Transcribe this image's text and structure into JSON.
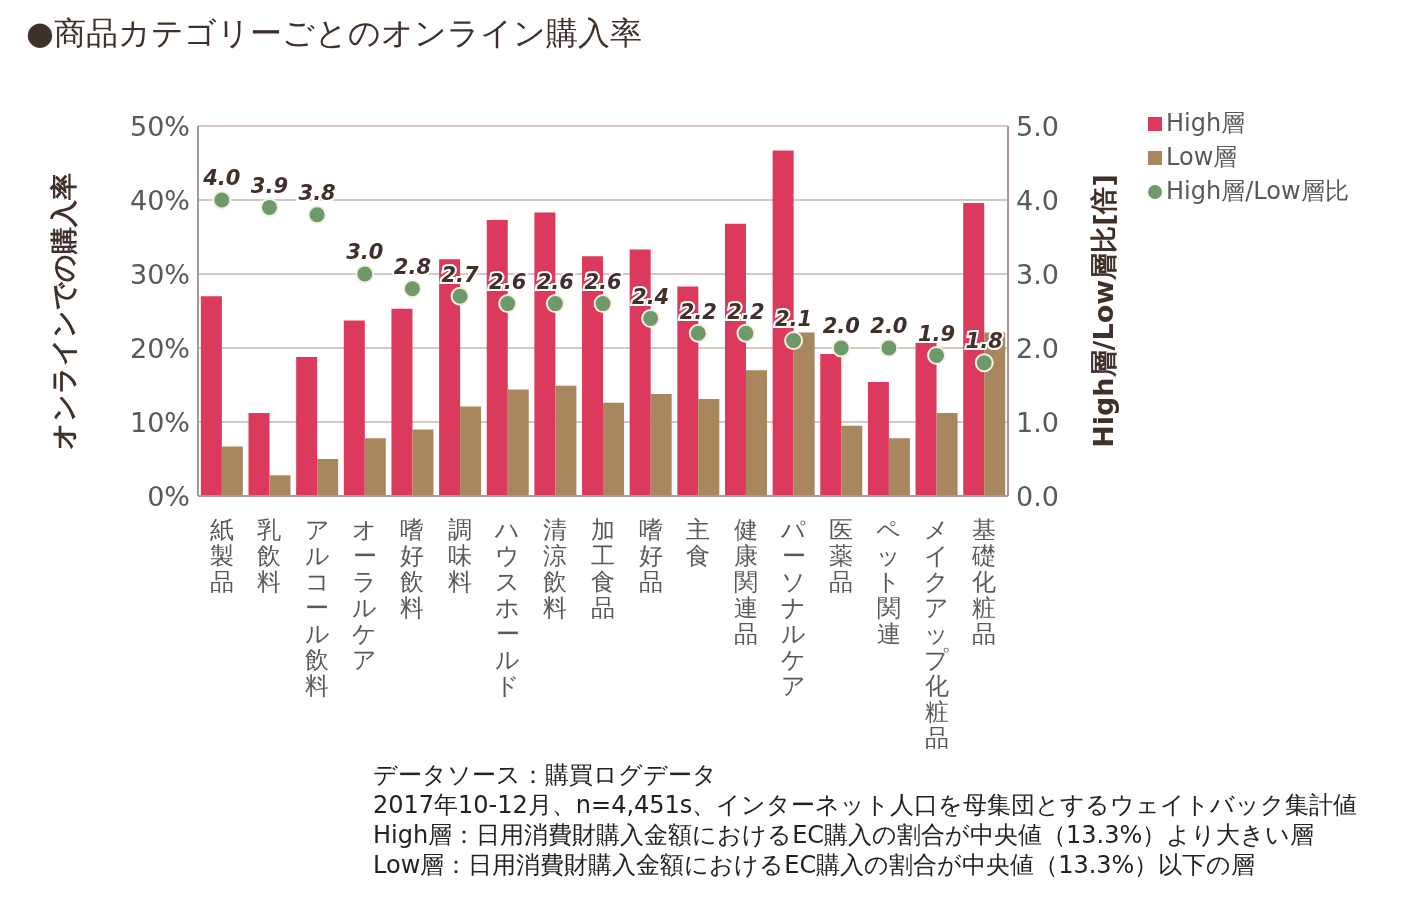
{
  "chart_data": {
    "type": "bar",
    "title": "●商品カテゴリーごとのオンライン購入率",
    "categories": [
      "紙製品",
      "乳飲料",
      "アルコール飲料",
      "オーラルケア",
      "嗜好飲料",
      "調味料",
      "ハウスホールド",
      "清涼飲料",
      "加工食品",
      "嗜好品",
      "主食",
      "健康関連品",
      "パーソナルケア",
      "医薬品",
      "ペット関連",
      "メイクアップ化粧品",
      "基礎化粧品"
    ],
    "series": [
      {
        "name": "High層",
        "color": "#dc3a5c",
        "values": [
          27.0,
          11.2,
          18.8,
          23.7,
          25.3,
          32.0,
          37.3,
          38.3,
          32.4,
          33.3,
          28.3,
          36.8,
          46.7,
          19.2,
          15.4,
          20.7,
          39.6
        ]
      },
      {
        "name": "Low層",
        "color": "#a8865e",
        "values": [
          6.7,
          2.8,
          5.0,
          7.8,
          9.0,
          12.1,
          14.4,
          14.9,
          12.6,
          13.8,
          13.1,
          17.0,
          22.1,
          9.5,
          7.8,
          11.2,
          22.1
        ]
      },
      {
        "name": "High層/Low層比",
        "type": "scatter",
        "axis": "y2",
        "color": "#6e9a6a",
        "values": [
          4.0,
          3.9,
          3.8,
          3.0,
          2.8,
          2.7,
          2.6,
          2.6,
          2.6,
          2.4,
          2.2,
          2.2,
          2.1,
          2.0,
          2.0,
          1.9,
          1.8
        ],
        "value_labels": [
          "4.0",
          "3.9",
          "3.8",
          "3.0",
          "2.8",
          "2.7",
          "2.6",
          "2.6",
          "2.6",
          "2.4",
          "2.2",
          "2.2",
          "2.1",
          "2.0",
          "2.0",
          "1.9",
          "1.8"
        ]
      }
    ],
    "ylabel": "オンラインでの購入率",
    "y2label": "High層/Low層比[倍]",
    "ylim": [
      0,
      50
    ],
    "yticks": [
      {
        "value": 0,
        "label": "0%"
      },
      {
        "value": 10,
        "label": "10%"
      },
      {
        "value": 20,
        "label": "20%"
      },
      {
        "value": 30,
        "label": "30%"
      },
      {
        "value": 40,
        "label": "40%"
      },
      {
        "value": 50,
        "label": "50%"
      }
    ],
    "y2lim": [
      0,
      5
    ],
    "y2ticks": [
      {
        "value": 0,
        "label": "0.0"
      },
      {
        "value": 1,
        "label": "1.0"
      },
      {
        "value": 2,
        "label": "2.0"
      },
      {
        "value": 3,
        "label": "3.0"
      },
      {
        "value": 4,
        "label": "4.0"
      },
      {
        "value": 5,
        "label": "5.0"
      }
    ],
    "grid": "y",
    "legend": "top right",
    "marker": "circle",
    "annotations": [
      "データソース：購買ログデータ",
      "2017年10-12月、n=4,451s、インターネット人口を母集団とするウェイトバック集計値",
      "High層：日用消費財購入金額におけるEC購入の割合が中央値（13.3%）より大きい層",
      "Low層：日用消費財購入金額におけるEC購入の割合が中央値（13.3%）以下の層"
    ]
  }
}
